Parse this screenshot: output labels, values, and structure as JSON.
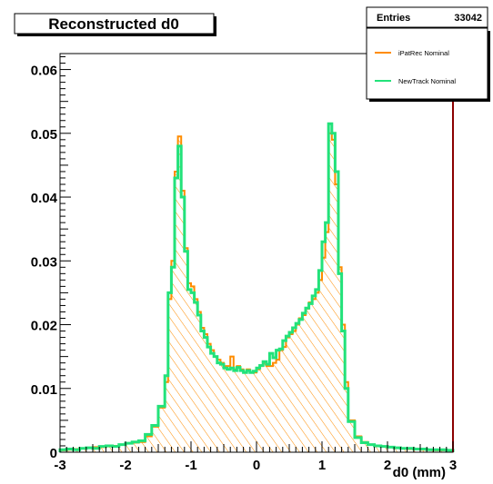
{
  "chart_data": {
    "type": "line",
    "title": "Reconstructed d0",
    "xlabel": "d0 (mm)",
    "ylabel": "",
    "xlim": [
      -3,
      3
    ],
    "ylim": [
      0,
      0.0625
    ],
    "x_ticks": [
      -3,
      -2,
      -1,
      0,
      1,
      2,
      3
    ],
    "x_tick_labels": [
      "-3",
      "-2",
      "-1",
      "0",
      "1",
      "2",
      "3"
    ],
    "y_ticks": [
      0,
      0.01,
      0.02,
      0.03,
      0.04,
      0.05,
      0.06
    ],
    "y_tick_labels": [
      "0",
      "0.01",
      "0.02",
      "0.03",
      "0.04",
      "0.05",
      "0.06"
    ],
    "grid": false,
    "legend_position": "top-right",
    "stats": {
      "label": "Entries",
      "value": "33042"
    },
    "bin_edges": [
      -3.0,
      -2.9,
      -2.8,
      -2.7,
      -2.6,
      -2.5,
      -2.4,
      -2.3,
      -2.2,
      -2.1,
      -2.0,
      -1.9,
      -1.8,
      -1.7,
      -1.6,
      -1.5,
      -1.4,
      -1.35,
      -1.3,
      -1.25,
      -1.2,
      -1.15,
      -1.1,
      -1.05,
      -1.0,
      -0.95,
      -0.9,
      -0.85,
      -0.8,
      -0.75,
      -0.7,
      -0.65,
      -0.6,
      -0.55,
      -0.5,
      -0.45,
      -0.4,
      -0.35,
      -0.3,
      -0.25,
      -0.2,
      -0.15,
      -0.1,
      -0.05,
      0.0,
      0.05,
      0.1,
      0.15,
      0.2,
      0.25,
      0.3,
      0.35,
      0.4,
      0.45,
      0.5,
      0.55,
      0.6,
      0.65,
      0.7,
      0.75,
      0.8,
      0.85,
      0.9,
      0.95,
      1.0,
      1.05,
      1.1,
      1.15,
      1.2,
      1.25,
      1.3,
      1.35,
      1.4,
      1.5,
      1.6,
      1.7,
      1.8,
      1.9,
      2.0,
      2.1,
      2.2,
      2.3,
      2.4,
      2.5,
      2.6,
      2.7,
      2.8,
      2.9,
      3.0
    ],
    "series": [
      {
        "name": "iPatRec Nominal",
        "color": "#ff8c00",
        "values": [
          0.0003,
          0.0004,
          0.0005,
          0.0006,
          0.0007,
          0.0008,
          0.0008,
          0.0009,
          0.001,
          0.0012,
          0.0014,
          0.0015,
          0.0016,
          0.0025,
          0.004,
          0.007,
          0.011,
          0.024,
          0.03,
          0.044,
          0.0495,
          0.041,
          0.032,
          0.0265,
          0.026,
          0.024,
          0.022,
          0.0195,
          0.0185,
          0.017,
          0.016,
          0.015,
          0.0145,
          0.014,
          0.0135,
          0.0135,
          0.015,
          0.013,
          0.0135,
          0.013,
          0.0125,
          0.013,
          0.0125,
          0.0125,
          0.013,
          0.0135,
          0.014,
          0.0135,
          0.0135,
          0.014,
          0.0145,
          0.016,
          0.0165,
          0.018,
          0.0185,
          0.019,
          0.02,
          0.021,
          0.0215,
          0.0225,
          0.0235,
          0.024,
          0.025,
          0.027,
          0.0305,
          0.0345,
          0.05,
          0.049,
          0.042,
          0.029,
          0.02,
          0.011,
          0.005,
          0.0025,
          0.0016,
          0.0012,
          0.001,
          0.0009,
          0.0008,
          0.0007,
          0.0006,
          0.0005,
          0.0005,
          0.0004,
          0.0004,
          0.0003,
          0.0003,
          0.0003
        ]
      },
      {
        "name": "NewTrack Nominal",
        "color": "#22e27a",
        "values": [
          0.0004,
          0.0005,
          0.0004,
          0.0006,
          0.0007,
          0.0006,
          0.0009,
          0.001,
          0.0009,
          0.0012,
          0.0014,
          0.0016,
          0.0018,
          0.0028,
          0.0042,
          0.0072,
          0.012,
          0.025,
          0.029,
          0.043,
          0.048,
          0.04,
          0.0315,
          0.0255,
          0.025,
          0.0235,
          0.0215,
          0.019,
          0.018,
          0.0165,
          0.0155,
          0.015,
          0.014,
          0.0138,
          0.0132,
          0.013,
          0.0132,
          0.0128,
          0.0133,
          0.0128,
          0.0125,
          0.0128,
          0.0125,
          0.0127,
          0.0132,
          0.0136,
          0.0142,
          0.0138,
          0.0155,
          0.0148,
          0.016,
          0.0162,
          0.0175,
          0.0182,
          0.0188,
          0.0195,
          0.0202,
          0.0208,
          0.0218,
          0.0226,
          0.0233,
          0.0245,
          0.0255,
          0.0285,
          0.033,
          0.036,
          0.0515,
          0.05,
          0.044,
          0.028,
          0.019,
          0.01,
          0.0048,
          0.0023,
          0.0015,
          0.0012,
          0.001,
          0.0009,
          0.0008,
          0.0007,
          0.0006,
          0.0006,
          0.0005,
          0.0005,
          0.0004,
          0.0004,
          0.0004,
          0.0003
        ]
      }
    ]
  }
}
